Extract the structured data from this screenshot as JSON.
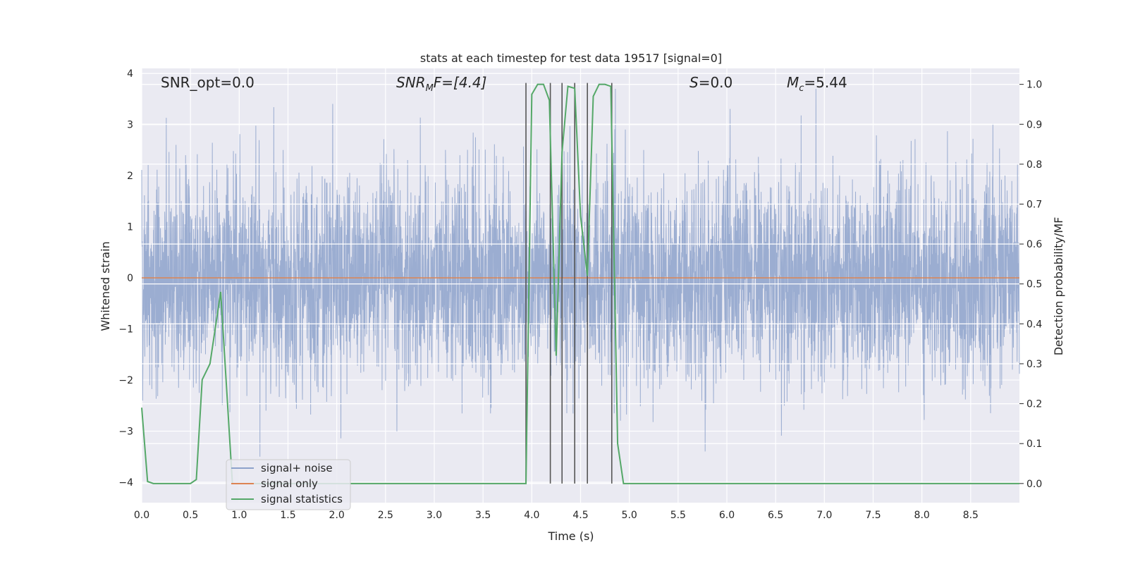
{
  "chart_data": {
    "type": "line",
    "title": "stats at each timestep for test data 19517 [signal=0]",
    "xlabel": "Time (s)",
    "ylabel": "Whitened strain",
    "ylabel_right": "Detection probability/MF",
    "xlim": [
      0,
      9.0
    ],
    "ylim": [
      -4.4,
      4.1
    ],
    "ylim_right": [
      -0.048,
      1.04
    ],
    "x_ticks": [
      "0.0",
      "0.5",
      "1.0",
      "1.5",
      "2.0",
      "2.5",
      "3.0",
      "3.5",
      "4.0",
      "4.5",
      "5.0",
      "5.5",
      "6.0",
      "6.5",
      "7.0",
      "7.5",
      "8.0",
      "8.5"
    ],
    "y_ticks": [
      "4",
      "3",
      "2",
      "1",
      "0",
      "−1",
      "−2",
      "−3",
      "−4"
    ],
    "y_ticks_right": [
      "1.0",
      "0.9",
      "0.8",
      "0.7",
      "0.6",
      "0.5",
      "0.4",
      "0.3",
      "0.2",
      "0.1",
      "0.0"
    ],
    "grid": true,
    "legend_position": "lower-left",
    "annotations": {
      "snr_opt": "SNR_opt=0.0",
      "snr_mf_base": "SNR",
      "snr_mf_sub": "M",
      "snr_mf_rest": "F=[4.4]",
      "s_base": "S",
      "s_rest": "=0.0",
      "mc_base": "M",
      "mc_sub": "c",
      "mc_rest": "=5.44"
    },
    "series": [
      {
        "name": "signal+ noise",
        "color": "#8da2cb",
        "description_values": "white Gaussian-like noise, mostly within ±2, occasional spikes to about ±3.5",
        "envelope": {
          "typical_min": -2.0,
          "typical_max": 2.0,
          "peak_max": 3.7,
          "peak_min": -3.5
        }
      },
      {
        "name": "signal only",
        "color": "#dd8452",
        "x": [
          0.0,
          9.0
        ],
        "y": [
          0.0,
          0.0
        ]
      },
      {
        "name": "signal statistics",
        "color": "#55a868",
        "axis": "right",
        "x": [
          0.0,
          0.06,
          0.12,
          0.5,
          0.56,
          0.62,
          0.7,
          0.81,
          0.87,
          0.93,
          3.94,
          4.0,
          4.06,
          4.12,
          4.18,
          4.25,
          4.31,
          4.37,
          4.44,
          4.5,
          4.57,
          4.63,
          4.69,
          4.75,
          4.81,
          4.88,
          4.94,
          9.0
        ],
        "y": [
          0.19,
          0.005,
          0.0,
          0.0,
          0.01,
          0.26,
          0.3,
          0.48,
          0.24,
          0.0,
          0.0,
          0.975,
          1.0,
          1.0,
          0.96,
          0.32,
          0.83,
          0.995,
          0.99,
          0.67,
          0.52,
          0.97,
          1.0,
          1.0,
          0.995,
          0.1,
          0.0,
          0.0
        ]
      }
    ],
    "vertical_lines_x": [
      3.94,
      4.19,
      4.31,
      4.44,
      4.57,
      4.82
    ],
    "vertical_lines_color": "#555555"
  }
}
